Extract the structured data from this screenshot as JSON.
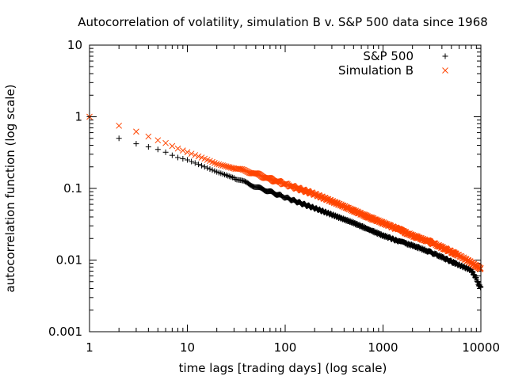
{
  "chart_data": {
    "type": "scatter",
    "title": "Autocorrelation of volatility, simulation B v. S&P 500 data since 1968",
    "xlabel": "time lags [trading days] (log scale)",
    "ylabel": "autocorrelation function (log scale)",
    "xscale": "log",
    "yscale": "log",
    "xlim": [
      1,
      10000
    ],
    "ylim": [
      0.001,
      10
    ],
    "xticks": [
      "1",
      "10",
      "100",
      "1000",
      "10000"
    ],
    "yticks": [
      "0.001",
      "0.01",
      "0.1",
      "1",
      "10"
    ],
    "legend_position": "top-right",
    "series": [
      {
        "name": "S&P 500",
        "marker": "plus",
        "color": "#000000",
        "x": [
          1,
          2,
          3,
          4,
          5,
          6,
          7,
          8,
          10,
          15,
          20,
          30,
          40,
          50,
          70,
          100,
          150,
          200,
          300,
          400,
          500,
          700,
          1000,
          1500,
          2000,
          3000,
          4000,
          5000,
          6000,
          7000,
          8000,
          8500,
          9000,
          9500,
          10000
        ],
        "y": [
          1.0,
          0.5,
          0.42,
          0.38,
          0.35,
          0.32,
          0.29,
          0.27,
          0.25,
          0.2,
          0.17,
          0.14,
          0.12,
          0.105,
          0.09,
          0.075,
          0.061,
          0.053,
          0.043,
          0.037,
          0.033,
          0.027,
          0.022,
          0.018,
          0.016,
          0.013,
          0.011,
          0.0095,
          0.0085,
          0.0078,
          0.0072,
          0.0062,
          0.0055,
          0.0045,
          0.0042
        ]
      },
      {
        "name": "Simulation B",
        "marker": "cross",
        "color": "#ff4500",
        "x": [
          1,
          2,
          3,
          4,
          5,
          6,
          7,
          8,
          10,
          15,
          20,
          30,
          40,
          50,
          70,
          100,
          150,
          200,
          300,
          400,
          500,
          700,
          1000,
          1500,
          2000,
          3000,
          4000,
          5000,
          6000,
          7000,
          8000,
          9000,
          10000
        ],
        "y": [
          1.0,
          0.75,
          0.62,
          0.53,
          0.47,
          0.43,
          0.39,
          0.36,
          0.32,
          0.26,
          0.22,
          0.19,
          0.175,
          0.16,
          0.135,
          0.115,
          0.095,
          0.083,
          0.066,
          0.056,
          0.049,
          0.04,
          0.033,
          0.026,
          0.022,
          0.018,
          0.015,
          0.013,
          0.0115,
          0.0102,
          0.0092,
          0.0082,
          0.0075
        ]
      }
    ]
  }
}
